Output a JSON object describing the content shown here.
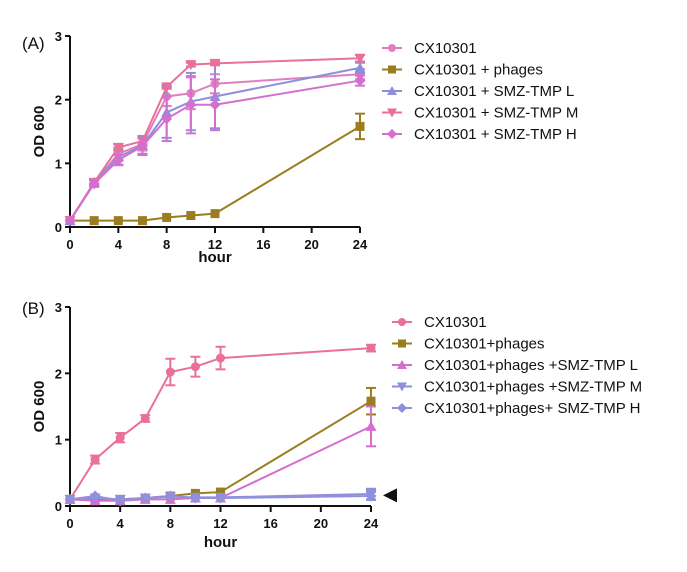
{
  "chart_data": [
    {
      "type": "line",
      "panel_label": "(A)",
      "xlabel": "hour",
      "ylabel": "OD 600",
      "x_ticks": [
        0,
        4,
        8,
        12,
        16,
        20,
        24
      ],
      "y_ticks": [
        0,
        1,
        2,
        3
      ],
      "xlim": [
        0,
        24
      ],
      "ylim": [
        0,
        3
      ],
      "grid": false,
      "legend_position": "right",
      "x": [
        0,
        2,
        4,
        6,
        8,
        10,
        12,
        24
      ],
      "series": [
        {
          "name": "CX10301",
          "color": "#e07fbd",
          "marker": "circle",
          "values": [
            0.1,
            0.7,
            1.15,
            1.3,
            2.05,
            2.1,
            2.25,
            2.4
          ],
          "errors": [
            0.02,
            0.05,
            0.1,
            0.1,
            0.15,
            0.25,
            0.15,
            0.08
          ]
        },
        {
          "name": "CX10301 + phages",
          "color": "#9a7d1e",
          "marker": "square",
          "values": [
            0.1,
            0.1,
            0.1,
            0.1,
            0.15,
            0.18,
            0.21,
            1.58
          ],
          "errors": [
            0.01,
            0.01,
            0.01,
            0.01,
            0.02,
            0.02,
            0.02,
            0.2
          ]
        },
        {
          "name": "CX10301 + SMZ-TMP L",
          "color": "#8c8fdc",
          "marker": "triangle-up",
          "values": [
            0.1,
            0.7,
            1.1,
            1.28,
            1.8,
            1.97,
            2.05,
            2.5
          ],
          "errors": [
            0.02,
            0.05,
            0.12,
            0.15,
            0.4,
            0.45,
            0.5,
            0.08
          ]
        },
        {
          "name": "CX10301 + SMZ-TMP M",
          "color": "#ea6f99",
          "marker": "triangle-down",
          "values": [
            0.1,
            0.7,
            1.25,
            1.35,
            2.2,
            2.55,
            2.57,
            2.65
          ],
          "errors": [
            0.02,
            0.04,
            0.05,
            0.05,
            0.03,
            0.03,
            0.03,
            0.05
          ]
        },
        {
          "name": "CX10301 + SMZ-TMP H",
          "color": "#d46fcf",
          "marker": "diamond",
          "values": [
            0.1,
            0.68,
            1.05,
            1.27,
            1.7,
            1.92,
            1.92,
            2.3
          ],
          "errors": [
            0.02,
            0.05,
            0.08,
            0.12,
            0.35,
            0.45,
            0.4,
            0.08
          ]
        }
      ]
    },
    {
      "type": "line",
      "panel_label": "(B)",
      "xlabel": "hour",
      "ylabel": "OD 600",
      "x_ticks": [
        0,
        4,
        8,
        12,
        16,
        20,
        24
      ],
      "y_ticks": [
        0,
        1,
        2,
        3
      ],
      "xlim": [
        0,
        24
      ],
      "ylim": [
        0,
        3
      ],
      "grid": false,
      "legend_position": "right",
      "annotation": "arrowhead pointing at 24 h low-OD series",
      "x": [
        0,
        2,
        4,
        6,
        8,
        10,
        12,
        24
      ],
      "series": [
        {
          "name": "CX10301",
          "color": "#e8709b",
          "marker": "circle",
          "values": [
            0.1,
            0.7,
            1.03,
            1.32,
            2.02,
            2.1,
            2.23,
            2.38
          ],
          "errors": [
            0.02,
            0.06,
            0.07,
            0.05,
            0.2,
            0.15,
            0.17,
            0.05
          ]
        },
        {
          "name": "CX10301+phages",
          "color": "#9a7d1e",
          "marker": "square",
          "values": [
            0.1,
            0.1,
            0.1,
            0.12,
            0.15,
            0.19,
            0.21,
            1.58
          ],
          "errors": [
            0.01,
            0.01,
            0.01,
            0.01,
            0.02,
            0.02,
            0.02,
            0.2
          ]
        },
        {
          "name": "CX10301+phages +SMZ-TMP L",
          "color": "#d46fcf",
          "marker": "triangle-up",
          "values": [
            0.1,
            0.08,
            0.08,
            0.1,
            0.1,
            0.12,
            0.12,
            1.2
          ],
          "errors": [
            0.01,
            0.01,
            0.01,
            0.01,
            0.01,
            0.01,
            0.01,
            0.3
          ]
        },
        {
          "name": "CX10301+phages +SMZ-TMP M",
          "color": "#8f8fdc",
          "marker": "triangle-down",
          "values": [
            0.1,
            0.12,
            0.1,
            0.12,
            0.14,
            0.13,
            0.13,
            0.18
          ],
          "errors": [
            0.01,
            0.02,
            0.01,
            0.01,
            0.02,
            0.02,
            0.02,
            0.08
          ]
        },
        {
          "name": "CX10301+phages+ SMZ-TMP H",
          "color": "#9090dd",
          "marker": "diamond",
          "values": [
            0.1,
            0.15,
            0.08,
            0.12,
            0.15,
            0.12,
            0.12,
            0.15
          ],
          "errors": [
            0.01,
            0.02,
            0.01,
            0.01,
            0.02,
            0.02,
            0.02,
            0.06
          ]
        }
      ]
    }
  ]
}
